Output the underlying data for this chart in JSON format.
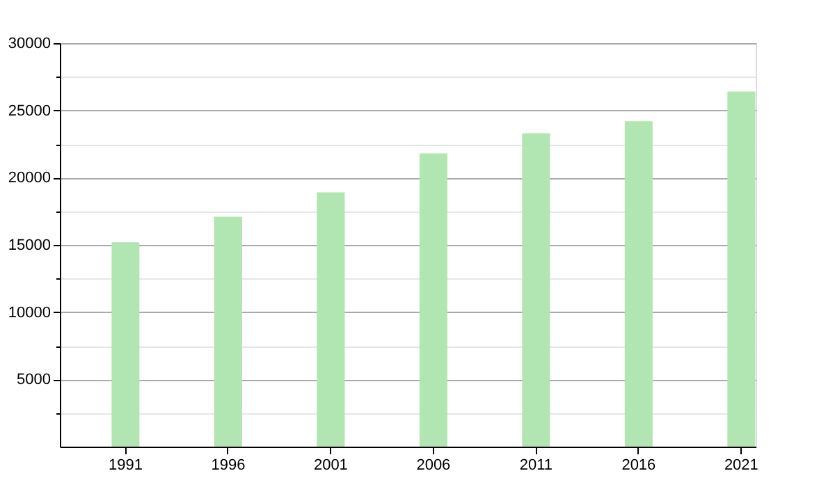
{
  "chart_data": {
    "type": "bar",
    "categories": [
      "1991",
      "1996",
      "2001",
      "2006",
      "2011",
      "2016",
      "2021"
    ],
    "values": [
      15200,
      17100,
      18900,
      21800,
      23300,
      24200,
      26400
    ],
    "color": "#b1e5b1",
    "ylim": [
      0,
      30000
    ],
    "yticks": [
      {
        "value": 2500,
        "label": null
      },
      5000,
      {
        "value": 7500,
        "label": null
      },
      10000,
      {
        "value": 12500,
        "label": null
      },
      15000,
      {
        "value": 17500,
        "label": null
      },
      20000,
      {
        "value": 22500,
        "label": null
      },
      25000,
      {
        "value": 27500,
        "label": null
      },
      30000
    ],
    "grid": "y"
  }
}
